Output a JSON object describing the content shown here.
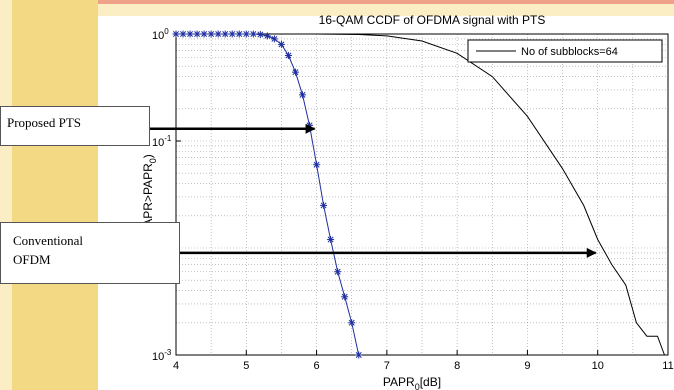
{
  "colors": {
    "background_band": "#f4d985",
    "background_band_light": "#fbeec4",
    "red_accent": "#e8645a",
    "blue_series": "#1f2fa0",
    "black_series": "#000000"
  },
  "chart_data": {
    "type": "line",
    "title": "16-QAM CCDF of OFDMA signal with PTS",
    "xlabel": "PAPR",
    "xlabel_sub": "0",
    "xlabel_suffix": "[dB]",
    "ylabel": "APR>PAPR",
    "ylabel_sub": "0",
    "ylabel_suffix": ")",
    "xlim": [
      4,
      11
    ],
    "ylim": [
      0.001,
      1
    ],
    "y_scale": "log",
    "grid": true,
    "x_ticks": [
      "4",
      "5",
      "6",
      "7",
      "8",
      "9",
      "10",
      "11"
    ],
    "y_ticks": [
      {
        "base": "10",
        "exp": "0",
        "value": 1
      },
      {
        "base": "10",
        "exp": "-1",
        "value": 0.1
      },
      {
        "base": "10",
        "exp": "-3",
        "value": 0.001
      }
    ],
    "legend": {
      "position": "top-right",
      "entries": [
        "No of subblocks=64"
      ]
    },
    "series": [
      {
        "name": "No of subblocks=64",
        "color": "#000000",
        "marker": "none",
        "x": [
          4.0,
          6.0,
          6.6,
          7.0,
          7.5,
          8.0,
          8.5,
          9.0,
          9.5,
          9.8,
          10.0,
          10.2,
          10.4,
          10.55,
          10.7,
          10.85,
          10.95
        ],
        "y": [
          1.0,
          1.0,
          0.99,
          0.96,
          0.86,
          0.66,
          0.4,
          0.17,
          0.055,
          0.025,
          0.012,
          0.007,
          0.0045,
          0.002,
          0.0015,
          0.0015,
          0.001
        ]
      },
      {
        "name": "",
        "color": "#1f2fa0",
        "marker": "asterisk",
        "x": [
          4.0,
          4.1,
          4.2,
          4.3,
          4.4,
          4.5,
          4.6,
          4.7,
          4.8,
          4.9,
          5.0,
          5.1,
          5.2,
          5.3,
          5.4,
          5.5,
          5.6,
          5.7,
          5.8,
          5.9,
          6.0,
          6.1,
          6.2,
          6.3,
          6.4,
          6.5,
          6.6
        ],
        "y": [
          1.0,
          1.0,
          1.0,
          1.0,
          1.0,
          1.0,
          1.0,
          1.0,
          1.0,
          1.0,
          1.0,
          1.0,
          0.99,
          0.96,
          0.9,
          0.8,
          0.63,
          0.44,
          0.27,
          0.14,
          0.06,
          0.025,
          0.012,
          0.006,
          0.0035,
          0.002,
          0.001
        ]
      }
    ],
    "annotations": [
      {
        "text": "Proposed PTS",
        "points_to_x": 6.0,
        "points_to_y": 0.13
      },
      {
        "text_lines": [
          "Conventional",
          "OFDM"
        ],
        "points_to_x": 10.0,
        "points_to_y": 0.009
      }
    ]
  }
}
